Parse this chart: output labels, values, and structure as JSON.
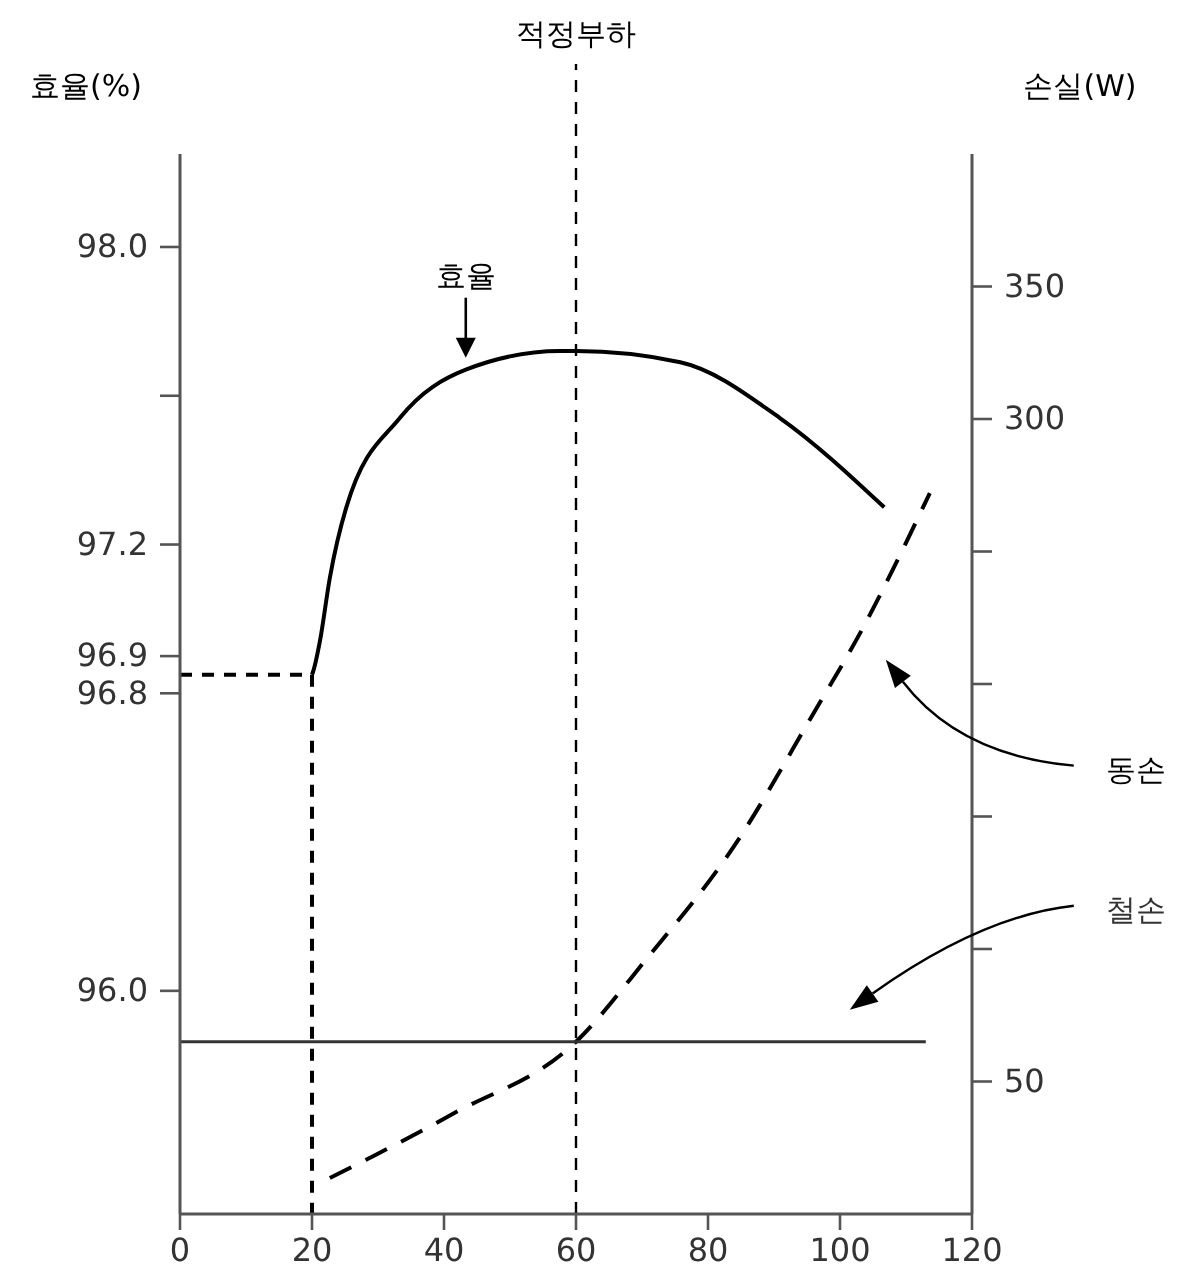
{
  "chart_data": {
    "type": "line",
    "ylabel": "효율(%)",
    "y2label": "손실(W)",
    "legend": false,
    "xlim": [
      0,
      120
    ],
    "xticks": [
      0,
      20,
      40,
      60,
      80,
      100,
      120
    ],
    "ylim": [
      95.4,
      98.25
    ],
    "yticks": [
      {
        "value": 96.0,
        "label": "96.0"
      },
      96.8,
      96.9,
      97.2,
      {
        "value": 97.6,
        "label": null
      },
      {
        "value": 98.0,
        "label": "98.0"
      }
    ],
    "y2lim": [
      0,
      400
    ],
    "y2ticks": [
      50,
      {
        "value": 100,
        "label": null
      },
      {
        "value": 150,
        "label": null
      },
      {
        "value": 200,
        "label": null
      },
      {
        "value": 250,
        "label": null
      },
      300,
      350
    ],
    "ref_lines": [
      {
        "axis": "x",
        "value": 60,
        "label": "적정부하",
        "line_style": "dashed"
      }
    ],
    "series": [
      {
        "name": "효율",
        "color": "#000000",
        "line_style": "solid",
        "x": [
          20,
          20.2,
          21.2,
          22.7,
          25.2,
          33.3,
          43.3,
          57.6,
          60,
          75.8,
          90.9,
          106.7
        ],
        "values": [
          96.85,
          96.86,
          96.94,
          97.11,
          97.3,
          97.54,
          97.67,
          97.72,
          97.72,
          97.69,
          97.54,
          97.3
        ]
      },
      {
        "color": "#000000",
        "line_style": "dashed",
        "x": [
          0,
          20,
          20
        ],
        "values": [
          96.85,
          96.85,
          95.4
        ]
      },
      {
        "name": "동손",
        "axis": "y2",
        "color": "#000000",
        "line_style": "dashed",
        "x": [
          22.7,
          29.4,
          41.5,
          60,
          70.6,
          84,
          96,
          103,
          113.6
        ],
        "values": [
          13.6,
          22,
          38,
          65,
          96,
          139,
          189,
          219,
          272
        ]
      },
      {
        "name": "철손",
        "axis": "y2",
        "color": "#333333",
        "line_style": "solid",
        "x": [
          0,
          113
        ],
        "values": [
          65,
          65
        ]
      }
    ]
  }
}
